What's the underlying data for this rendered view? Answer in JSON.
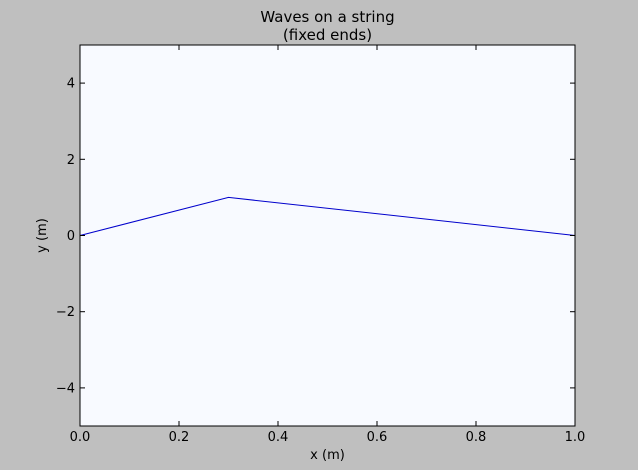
{
  "chart_data": {
    "type": "line",
    "title_lines": [
      "Waves on a string",
      "(fixed ends)"
    ],
    "xlabel": "x (m)",
    "ylabel": "y (m)",
    "xlim": [
      0.0,
      1.0
    ],
    "ylim": [
      -5,
      5
    ],
    "xticks": [
      0.0,
      0.2,
      0.4,
      0.6,
      0.8,
      1.0
    ],
    "xtick_labels": [
      "0.0",
      "0.2",
      "0.4",
      "0.6",
      "0.8",
      "1.0"
    ],
    "yticks": [
      -4,
      -2,
      0,
      2,
      4
    ],
    "ytick_labels": [
      "−4",
      "−2",
      "0",
      "2",
      "4"
    ],
    "grid": false,
    "series": [
      {
        "x": [
          0.0,
          0.3,
          1.0
        ],
        "y": [
          0.0,
          1.0,
          0.0
        ],
        "color": "#0000cc"
      }
    ],
    "colors": {
      "figure_background": "#bfbfbf",
      "plot_background": "#f8faff",
      "line": "#0000cc"
    }
  }
}
